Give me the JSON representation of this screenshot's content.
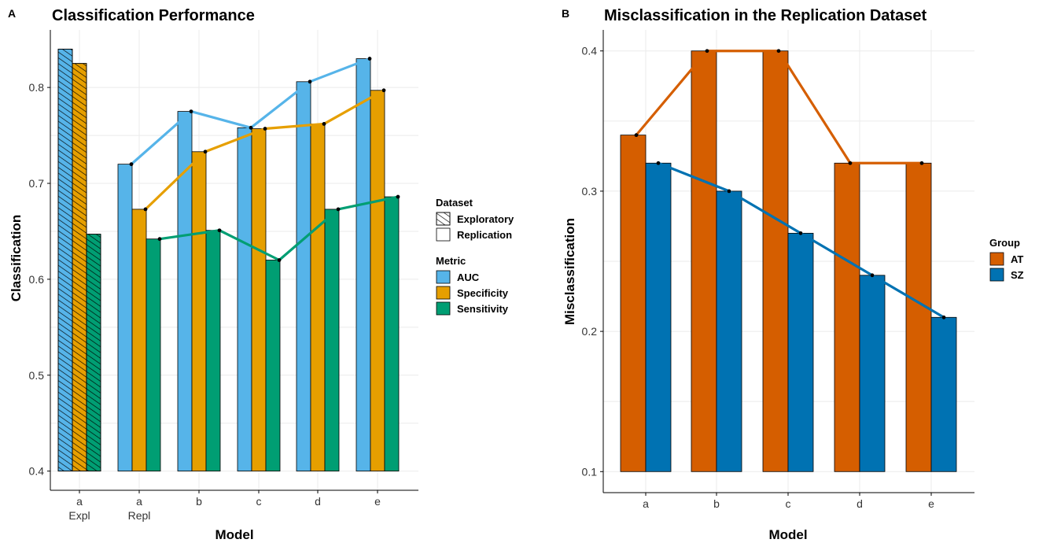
{
  "chart_data": [
    {
      "panel_label": "A",
      "type": "bar",
      "title": "Classification Performance",
      "xlabel": "Model",
      "ylabel": "Classification",
      "ylim": [
        0.38,
        0.86
      ],
      "yticks": [
        0.4,
        0.5,
        0.6,
        0.7,
        0.8
      ],
      "ytick_labels": [
        "0.4",
        "0.5",
        "0.6",
        "0.7",
        "0.8"
      ],
      "categories": [
        {
          "label": "a",
          "sublabel": "Expl"
        },
        {
          "label": "a",
          "sublabel": "Repl"
        },
        {
          "label": "b",
          "sublabel": ""
        },
        {
          "label": "c",
          "sublabel": ""
        },
        {
          "label": "d",
          "sublabel": ""
        },
        {
          "label": "e",
          "sublabel": ""
        }
      ],
      "dataset": [
        "Exploratory",
        "Replication",
        "Replication",
        "Replication",
        "Replication",
        "Replication"
      ],
      "series": [
        {
          "name": "AUC",
          "color": "#56B4E9",
          "values": [
            0.84,
            0.72,
            0.775,
            0.758,
            0.806,
            0.83
          ]
        },
        {
          "name": "Specificity",
          "color": "#E69F00",
          "values": [
            0.825,
            0.673,
            0.733,
            0.757,
            0.762,
            0.797
          ]
        },
        {
          "name": "Sensitivity",
          "color": "#009E73",
          "values": [
            0.647,
            0.642,
            0.651,
            0.62,
            0.673,
            0.686
          ]
        }
      ],
      "lines_over": "Replication",
      "legends": [
        {
          "title": "Dataset",
          "items": [
            {
              "label": "Exploratory",
              "pattern": "hatch"
            },
            {
              "label": "Replication",
              "pattern": "none"
            }
          ]
        },
        {
          "title": "Metric",
          "items": [
            {
              "label": "AUC",
              "color": "#56B4E9"
            },
            {
              "label": "Specificity",
              "color": "#E69F00"
            },
            {
              "label": "Sensitivity",
              "color": "#009E73"
            }
          ]
        }
      ],
      "grid": true,
      "legend_position": "right"
    },
    {
      "panel_label": "B",
      "type": "bar",
      "title": "Misclassification in the Replication Dataset",
      "xlabel": "Model",
      "ylabel": "Misclassification",
      "ylim": [
        0.085,
        0.415
      ],
      "yticks": [
        0.1,
        0.2,
        0.3,
        0.4
      ],
      "ytick_labels": [
        "0.1",
        "0.2",
        "0.3",
        "0.4"
      ],
      "categories": [
        "a",
        "b",
        "c",
        "d",
        "e"
      ],
      "series": [
        {
          "name": "AT",
          "color": "#D55E00",
          "values": [
            0.34,
            0.4,
            0.4,
            0.32,
            0.32
          ]
        },
        {
          "name": "SZ",
          "color": "#0072B2",
          "values": [
            0.32,
            0.3,
            0.27,
            0.24,
            0.21
          ]
        }
      ],
      "legends": [
        {
          "title": "Group",
          "items": [
            {
              "label": "AT",
              "color": "#D55E00"
            },
            {
              "label": "SZ",
              "color": "#0072B2"
            }
          ]
        }
      ],
      "grid": true,
      "legend_position": "right"
    }
  ]
}
